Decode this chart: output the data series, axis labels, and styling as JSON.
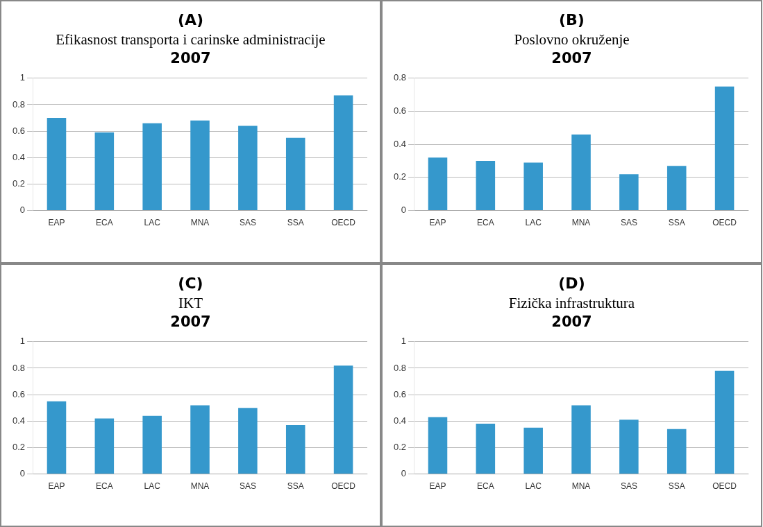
{
  "chart_data": [
    {
      "type": "bar",
      "title": "(A)",
      "subtitle": "Efikasnost transporta i carinske administracije",
      "annotations": [
        "2007"
      ],
      "categories": [
        "EAP",
        "ECA",
        "LAC",
        "MNA",
        "SAS",
        "SSA",
        "OECD"
      ],
      "values": [
        0.7,
        0.59,
        0.66,
        0.68,
        0.64,
        0.55,
        0.87
      ],
      "color": "#3598cc",
      "ylim": [
        0,
        1
      ],
      "yticks": [
        0,
        0.2,
        0.4,
        0.6,
        0.8,
        1
      ],
      "grid": "y"
    },
    {
      "type": "bar",
      "title": "(B)",
      "subtitle": "Poslovno okruženje",
      "annotations": [
        "2007"
      ],
      "categories": [
        "EAP",
        "ECA",
        "LAC",
        "MNA",
        "SAS",
        "SSA",
        "OECD"
      ],
      "values": [
        0.32,
        0.3,
        0.29,
        0.46,
        0.22,
        0.27,
        0.75
      ],
      "color": "#3598cc",
      "ylim": [
        0,
        0.8
      ],
      "yticks": [
        0,
        0.2,
        0.4,
        0.6,
        0.8
      ],
      "grid": "y"
    },
    {
      "type": "bar",
      "title": "(C)",
      "subtitle": "IKT",
      "annotations": [
        "2007"
      ],
      "categories": [
        "EAP",
        "ECA",
        "LAC",
        "MNA",
        "SAS",
        "SSA",
        "OECD"
      ],
      "values": [
        0.55,
        0.42,
        0.44,
        0.52,
        0.5,
        0.37,
        0.82
      ],
      "color": "#3598cc",
      "ylim": [
        0,
        1
      ],
      "yticks": [
        0,
        0.2,
        0.4,
        0.6,
        0.8,
        1
      ],
      "grid": "y"
    },
    {
      "type": "bar",
      "title": "(D)",
      "subtitle": "Fizička infrastruktura",
      "annotations": [
        "2007"
      ],
      "categories": [
        "EAP",
        "ECA",
        "LAC",
        "MNA",
        "SAS",
        "SSA",
        "OECD"
      ],
      "values": [
        0.43,
        0.38,
        0.35,
        0.52,
        0.41,
        0.34,
        0.78
      ],
      "color": "#3598cc",
      "ylim": [
        0,
        1
      ],
      "yticks": [
        0,
        0.2,
        0.4,
        0.6,
        0.8,
        1
      ],
      "grid": "y"
    }
  ]
}
